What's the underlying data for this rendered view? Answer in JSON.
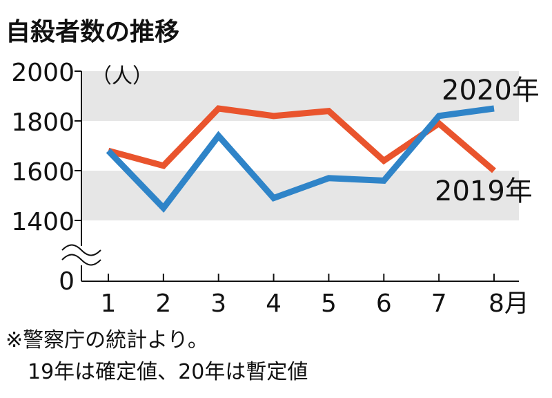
{
  "chart_data": {
    "type": "line",
    "title": "自殺者数の推移",
    "ylabel": "（人）",
    "xlabel": "",
    "categories": [
      "1",
      "2",
      "3",
      "4",
      "5",
      "6",
      "7",
      "8月"
    ],
    "series": [
      {
        "name": "2020年",
        "color": "#2f84c8",
        "values": [
          1680,
          1450,
          1740,
          1490,
          1570,
          1560,
          1820,
          1850
        ]
      },
      {
        "name": "2019年",
        "color": "#e9542d",
        "values": [
          1680,
          1620,
          1850,
          1820,
          1840,
          1640,
          1790,
          1600
        ]
      }
    ],
    "yticks": [
      "2000",
      "1800",
      "1600",
      "1400",
      "0"
    ],
    "ylim": [
      1400,
      2000
    ],
    "axis_break": true,
    "band_color": "#e6e6e6",
    "notes": [
      "※警察庁の統計より。",
      "19年は確定値、20年は暫定値"
    ]
  }
}
